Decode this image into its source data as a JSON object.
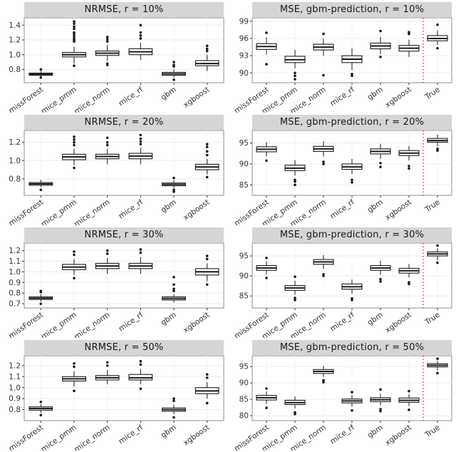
{
  "figure": {
    "bg": "#ffffff",
    "strip_bg": "#d5d5d5",
    "panel_border": "#8c8c8c",
    "grid_color": "#ededed",
    "box_fill": "#ffffff",
    "box_stroke": "#1a1a1a",
    "outlier_color": "#1a1a1a",
    "vline_color": "#ff0000",
    "axis_text_color": "#333333"
  },
  "chart_data": [
    {
      "type": "boxplot",
      "title": "NRMSE, r = 10%",
      "categories": [
        "missForest",
        "mice_pmm",
        "mice_norm",
        "mice_rf",
        "gbm",
        "xgboost"
      ],
      "ylim": [
        0.62,
        1.5
      ],
      "yticks": [
        "0.8",
        "1.0",
        "1.2",
        "1.4"
      ],
      "has_vline": false,
      "boxes": [
        {
          "low": 0.7,
          "q1": 0.72,
          "med": 0.735,
          "q3": 0.75,
          "high": 0.78,
          "outliers": [
            0.8,
            0.69
          ]
        },
        {
          "low": 0.88,
          "q1": 0.97,
          "med": 1.0,
          "q3": 1.03,
          "high": 1.11,
          "outliers": [
            1.18,
            1.2,
            1.22,
            1.25,
            1.28,
            1.3,
            1.35,
            1.38,
            1.42,
            1.45,
            0.85
          ]
        },
        {
          "low": 0.92,
          "q1": 0.99,
          "med": 1.02,
          "q3": 1.05,
          "high": 1.13,
          "outliers": [
            1.18,
            1.21,
            1.24,
            0.88,
            0.86
          ]
        },
        {
          "low": 0.93,
          "q1": 1.0,
          "med": 1.04,
          "q3": 1.08,
          "high": 1.16,
          "outliers": [
            1.22,
            1.26,
            1.3,
            1.4
          ]
        },
        {
          "low": 0.69,
          "q1": 0.72,
          "med": 0.74,
          "q3": 0.76,
          "high": 0.8,
          "outliers": [
            0.84,
            0.86,
            0.9,
            0.66
          ]
        },
        {
          "low": 0.78,
          "q1": 0.85,
          "med": 0.88,
          "q3": 0.92,
          "high": 1.0,
          "outliers": [
            1.05,
            1.08,
            1.12
          ]
        }
      ]
    },
    {
      "type": "boxplot",
      "title": "MSE, gbm-prediction, r = 10%",
      "categories": [
        "missForest",
        "mice_pmm",
        "mice_norm",
        "mice_rf",
        "gbm",
        "xgboost",
        "True"
      ],
      "ylim": [
        88.3,
        99.6
      ],
      "yticks": [
        "90",
        "93",
        "96",
        "99"
      ],
      "has_vline": true,
      "boxes": [
        {
          "low": 93.2,
          "q1": 94.1,
          "med": 94.6,
          "q3": 95.1,
          "high": 96.2,
          "outliers": [
            97.0,
            91.5
          ]
        },
        {
          "low": 90.8,
          "q1": 91.8,
          "med": 92.3,
          "q3": 92.9,
          "high": 94.0,
          "outliers": [
            89.5,
            90.0,
            88.9
          ]
        },
        {
          "low": 93.0,
          "q1": 94.0,
          "med": 94.5,
          "q3": 95.0,
          "high": 96.0,
          "outliers": [
            96.8,
            89.6
          ]
        },
        {
          "low": 90.5,
          "q1": 91.8,
          "med": 92.4,
          "q3": 93.0,
          "high": 94.3,
          "outliers": [
            89.8,
            89.5
          ]
        },
        {
          "low": 93.3,
          "q1": 94.2,
          "med": 94.7,
          "q3": 95.2,
          "high": 96.3,
          "outliers": [
            97.3,
            92.8
          ]
        },
        {
          "low": 92.8,
          "q1": 93.8,
          "med": 94.3,
          "q3": 94.8,
          "high": 95.8,
          "outliers": [
            96.8,
            97.1
          ]
        },
        {
          "low": 94.9,
          "q1": 95.6,
          "med": 96.0,
          "q3": 96.5,
          "high": 97.4,
          "outliers": [
            98.4,
            94.3
          ]
        }
      ]
    },
    {
      "type": "boxplot",
      "title": "NRMSE, r = 20%",
      "categories": [
        "missForest",
        "mice_pmm",
        "mice_norm",
        "mice_rf",
        "gbm",
        "xgboost"
      ],
      "ylim": [
        0.62,
        1.33
      ],
      "yticks": [
        "0.8",
        "1.0",
        "1.2"
      ],
      "has_vline": false,
      "boxes": [
        {
          "low": 0.71,
          "q1": 0.73,
          "med": 0.745,
          "q3": 0.76,
          "high": 0.79,
          "outliers": [
            0.68
          ]
        },
        {
          "low": 0.95,
          "q1": 1.01,
          "med": 1.04,
          "q3": 1.07,
          "high": 1.13,
          "outliers": [
            1.17,
            1.2,
            1.23,
            1.26,
            0.92
          ]
        },
        {
          "low": 0.96,
          "q1": 1.02,
          "med": 1.045,
          "q3": 1.07,
          "high": 1.13,
          "outliers": [
            1.17,
            1.2,
            1.25
          ]
        },
        {
          "low": 0.96,
          "q1": 1.02,
          "med": 1.05,
          "q3": 1.08,
          "high": 1.14,
          "outliers": [
            1.18,
            1.21,
            1.24,
            1.28
          ]
        },
        {
          "low": 0.7,
          "q1": 0.725,
          "med": 0.74,
          "q3": 0.755,
          "high": 0.785,
          "outliers": [
            0.68,
            0.66,
            0.81
          ]
        },
        {
          "low": 0.85,
          "q1": 0.9,
          "med": 0.93,
          "q3": 0.96,
          "high": 1.02,
          "outliers": [
            1.06,
            1.1,
            1.15,
            1.18,
            0.82
          ]
        }
      ]
    },
    {
      "type": "boxplot",
      "title": "MSE, gbm-prediction, r = 20%",
      "categories": [
        "missForest",
        "mice_pmm",
        "mice_norm",
        "mice_rf",
        "gbm",
        "xgboost",
        "True"
      ],
      "ylim": [
        82.5,
        98.0
      ],
      "yticks": [
        "85",
        "90",
        "95"
      ],
      "has_vline": true,
      "boxes": [
        {
          "low": 91.8,
          "q1": 92.9,
          "med": 93.5,
          "q3": 94.1,
          "high": 95.2,
          "outliers": [
            90.8
          ]
        },
        {
          "low": 87.2,
          "q1": 88.4,
          "med": 89.0,
          "q3": 89.7,
          "high": 90.9,
          "outliers": [
            85.8,
            85.0,
            86.2
          ]
        },
        {
          "low": 91.8,
          "q1": 93.0,
          "med": 93.6,
          "q3": 94.2,
          "high": 95.4,
          "outliers": [
            90.5,
            90.0
          ]
        },
        {
          "low": 87.6,
          "q1": 88.7,
          "med": 89.3,
          "q3": 90.0,
          "high": 91.2,
          "outliers": [
            86.2,
            85.6
          ]
        },
        {
          "low": 91.2,
          "q1": 92.4,
          "med": 93.0,
          "q3": 93.6,
          "high": 94.8,
          "outliers": [
            90.2,
            89.3
          ]
        },
        {
          "low": 90.8,
          "q1": 92.0,
          "med": 92.6,
          "q3": 93.2,
          "high": 94.3,
          "outliers": [
            89.5,
            88.9
          ]
        },
        {
          "low": 94.2,
          "q1": 95.2,
          "med": 95.6,
          "q3": 96.1,
          "high": 97.0,
          "outliers": [
            93.2,
            93.6
          ]
        }
      ]
    },
    {
      "type": "boxplot",
      "title": "NRMSE, r = 30%",
      "categories": [
        "missForest",
        "mice_pmm",
        "mice_norm",
        "mice_rf",
        "gbm",
        "xgboost"
      ],
      "ylim": [
        0.66,
        1.27
      ],
      "yticks": [
        "0.7",
        "0.8",
        "0.9",
        "1.0",
        "1.1",
        "1.2"
      ],
      "has_vline": false,
      "boxes": [
        {
          "low": 0.72,
          "q1": 0.74,
          "med": 0.752,
          "q3": 0.765,
          "high": 0.79,
          "outliers": [
            0.81,
            0.82,
            0.7
          ]
        },
        {
          "low": 0.97,
          "q1": 1.02,
          "med": 1.045,
          "q3": 1.07,
          "high": 1.12,
          "outliers": [
            1.16,
            1.19,
            0.94
          ]
        },
        {
          "low": 0.98,
          "q1": 1.03,
          "med": 1.055,
          "q3": 1.08,
          "high": 1.13,
          "outliers": [
            1.17,
            1.2
          ]
        },
        {
          "low": 0.98,
          "q1": 1.03,
          "med": 1.055,
          "q3": 1.08,
          "high": 1.14,
          "outliers": [
            1.18,
            1.21
          ]
        },
        {
          "low": 0.71,
          "q1": 0.735,
          "med": 0.75,
          "q3": 0.765,
          "high": 0.79,
          "outliers": [
            0.82,
            0.84,
            0.88,
            0.95
          ]
        },
        {
          "low": 0.91,
          "q1": 0.97,
          "med": 1.0,
          "q3": 1.03,
          "high": 1.08,
          "outliers": [
            1.12,
            1.15,
            0.88
          ]
        }
      ]
    },
    {
      "type": "boxplot",
      "title": "MSE, gbm-prediction, r = 30%",
      "categories": [
        "missForest",
        "mice_pmm",
        "mice_norm",
        "mice_rf",
        "gbm",
        "xgboost",
        "True"
      ],
      "ylim": [
        82.0,
        98.2
      ],
      "yticks": [
        "85",
        "90",
        "95"
      ],
      "has_vline": true,
      "boxes": [
        {
          "low": 90.4,
          "q1": 91.4,
          "med": 92.0,
          "q3": 92.6,
          "high": 93.7,
          "outliers": [
            89.5,
            94.5
          ]
        },
        {
          "low": 85.3,
          "q1": 86.4,
          "med": 87.0,
          "q3": 87.6,
          "high": 88.8,
          "outliers": [
            84.0,
            84.5,
            89.8
          ]
        },
        {
          "low": 91.8,
          "q1": 92.9,
          "med": 93.5,
          "q3": 94.1,
          "high": 95.2,
          "outliers": [
            90.4,
            90.0
          ]
        },
        {
          "low": 85.6,
          "q1": 86.7,
          "med": 87.3,
          "q3": 88.0,
          "high": 89.1,
          "outliers": [
            84.4,
            84.0
          ]
        },
        {
          "low": 90.3,
          "q1": 91.4,
          "med": 92.0,
          "q3": 92.6,
          "high": 93.8,
          "outliers": [
            89.2,
            88.6
          ]
        },
        {
          "low": 89.6,
          "q1": 90.7,
          "med": 91.3,
          "q3": 91.9,
          "high": 93.0,
          "outliers": [
            88.4,
            88.0
          ]
        },
        {
          "low": 94.0,
          "q1": 95.0,
          "med": 95.5,
          "q3": 96.0,
          "high": 96.9,
          "outliers": [
            93.3,
            97.6
          ]
        }
      ]
    },
    {
      "type": "boxplot",
      "title": "NRMSE, r = 50%",
      "categories": [
        "missForest",
        "mice_pmm",
        "mice_norm",
        "mice_rf",
        "gbm",
        "xgboost"
      ],
      "ylim": [
        0.7,
        1.29
      ],
      "yticks": [
        "0.8",
        "0.9",
        "1.0",
        "1.1",
        "1.2"
      ],
      "has_vline": false,
      "boxes": [
        {
          "low": 0.77,
          "q1": 0.795,
          "med": 0.81,
          "q3": 0.825,
          "high": 0.85,
          "outliers": [
            0.75,
            0.87
          ]
        },
        {
          "low": 1.01,
          "q1": 1.06,
          "med": 1.08,
          "q3": 1.1,
          "high": 1.15,
          "outliers": [
            1.19,
            1.22,
            0.97
          ]
        },
        {
          "low": 1.03,
          "q1": 1.07,
          "med": 1.09,
          "q3": 1.11,
          "high": 1.16,
          "outliers": [
            1.2,
            1.23
          ]
        },
        {
          "low": 1.03,
          "q1": 1.07,
          "med": 1.09,
          "q3": 1.12,
          "high": 1.17,
          "outliers": [
            1.21,
            1.24,
            0.99
          ]
        },
        {
          "low": 0.76,
          "q1": 0.785,
          "med": 0.8,
          "q3": 0.815,
          "high": 0.845,
          "outliers": [
            0.73,
            0.88,
            0.9
          ]
        },
        {
          "low": 0.9,
          "q1": 0.945,
          "med": 0.97,
          "q3": 1.0,
          "high": 1.05,
          "outliers": [
            1.09,
            1.12,
            0.86
          ]
        }
      ]
    },
    {
      "type": "boxplot",
      "title": "MSE, gbm-prediction, r = 50%",
      "categories": [
        "missForest",
        "mice_pmm",
        "mice_norm",
        "mice_rf",
        "gbm",
        "xgboost",
        "True"
      ],
      "ylim": [
        78.5,
        98.3
      ],
      "yticks": [
        "80",
        "85",
        "90",
        "95"
      ],
      "has_vline": true,
      "boxes": [
        {
          "low": 83.6,
          "q1": 84.8,
          "med": 85.5,
          "q3": 86.2,
          "high": 87.4,
          "outliers": [
            82.4,
            88.3
          ]
        },
        {
          "low": 82.2,
          "q1": 83.4,
          "med": 84.0,
          "q3": 84.7,
          "high": 85.9,
          "outliers": [
            81.0,
            80.5
          ]
        },
        {
          "low": 91.8,
          "q1": 92.9,
          "med": 93.5,
          "q3": 94.1,
          "high": 95.2,
          "outliers": [
            90.8,
            90.2
          ]
        },
        {
          "low": 82.8,
          "q1": 83.9,
          "med": 84.5,
          "q3": 85.1,
          "high": 86.3,
          "outliers": [
            81.6,
            87.2
          ]
        },
        {
          "low": 83.2,
          "q1": 84.3,
          "med": 84.9,
          "q3": 85.5,
          "high": 86.7,
          "outliers": [
            82.0,
            88.0,
            81.4
          ]
        },
        {
          "low": 83.0,
          "q1": 84.1,
          "med": 84.7,
          "q3": 85.4,
          "high": 86.5,
          "outliers": [
            81.8,
            87.5
          ]
        },
        {
          "low": 93.8,
          "q1": 94.9,
          "med": 95.4,
          "q3": 95.9,
          "high": 96.8,
          "outliers": [
            93.0,
            97.4
          ]
        }
      ]
    }
  ]
}
